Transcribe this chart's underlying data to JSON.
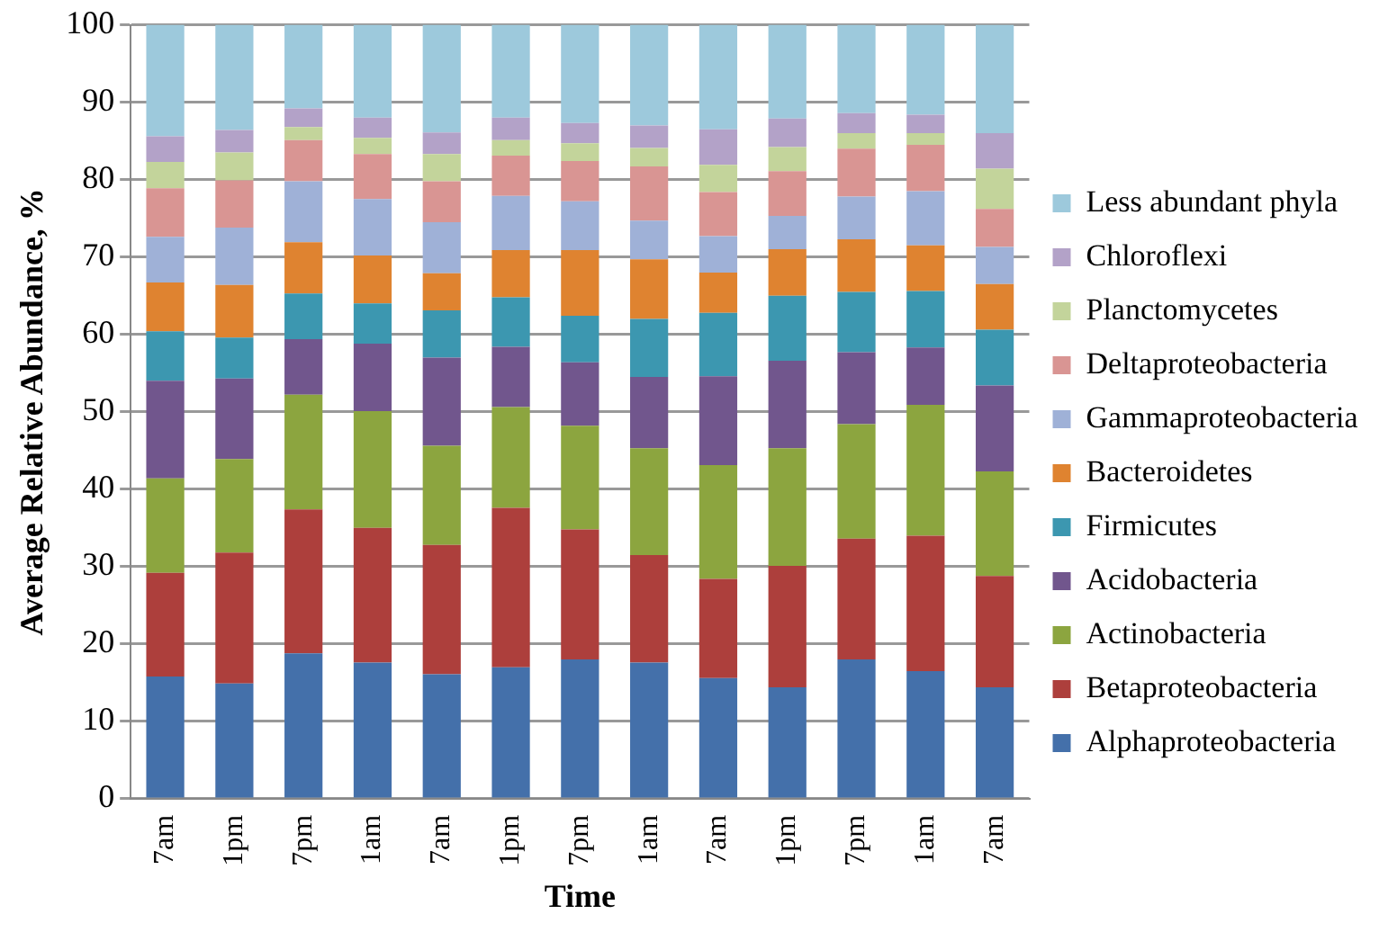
{
  "chart_data": {
    "type": "bar",
    "stacked": true,
    "xlabel": "Time",
    "ylabel": "Average Relative Abundance, %",
    "categories": [
      "7am",
      "1pm",
      "7pm",
      "1am",
      "7am",
      "1pm",
      "7pm",
      "1am",
      "7am",
      "1pm",
      "7pm",
      "1am",
      "7am"
    ],
    "ylim": [
      0,
      100
    ],
    "yticks": [
      0,
      10,
      20,
      30,
      40,
      50,
      60,
      70,
      80,
      90,
      100
    ],
    "grid": "y",
    "legend": "right",
    "series": [
      {
        "name": "Alphaproteobacteria",
        "color": "#4470aa",
        "values": [
          15.8,
          14.9,
          18.8,
          17.6,
          16.1,
          17,
          18,
          17.6,
          15.6,
          14.4,
          18,
          16.5,
          14.4
        ]
      },
      {
        "name": "Betaproteobacteria",
        "color": "#ad3f3c",
        "values": [
          13.4,
          16.9,
          18.6,
          17.4,
          16.7,
          20.6,
          16.8,
          13.9,
          12.8,
          15.7,
          15.6,
          17.5,
          14.4
        ]
      },
      {
        "name": "Actinobacteria",
        "color": "#8ca53f",
        "values": [
          12.2,
          12.1,
          14.8,
          15.1,
          12.8,
          13,
          13.4,
          13.8,
          14.7,
          15.2,
          14.8,
          16.9,
          13.5
        ]
      },
      {
        "name": "Acidobacteria",
        "color": "#71568d",
        "values": [
          12.6,
          10.4,
          7.2,
          8.7,
          11.4,
          7.8,
          8.2,
          9.2,
          11.5,
          11.3,
          9.3,
          7.4,
          11.1
        ]
      },
      {
        "name": "Firmicutes",
        "color": "#3c97b0",
        "values": [
          6.4,
          5.3,
          5.9,
          5.2,
          6.1,
          6.4,
          6,
          7.5,
          8.2,
          8.4,
          7.8,
          7.3,
          7.2
        ]
      },
      {
        "name": "Bacteroidetes",
        "color": "#df8330",
        "values": [
          6.3,
          6.8,
          6.6,
          6.2,
          4.8,
          6.1,
          8.5,
          7.7,
          5.2,
          6,
          6.8,
          5.9,
          5.9
        ]
      },
      {
        "name": "Gammaproteobacteria",
        "color": "#9fb1d7",
        "values": [
          5.9,
          7.4,
          7.9,
          7.3,
          6.6,
          7,
          6.3,
          5,
          4.7,
          4.3,
          5.5,
          7,
          4.8
        ]
      },
      {
        "name": "Deltaproteobacteria",
        "color": "#d99593",
        "values": [
          6.3,
          6.1,
          5.3,
          5.8,
          5.3,
          5.2,
          5.2,
          7,
          5.7,
          5.8,
          6.2,
          6,
          4.9
        ]
      },
      {
        "name": "Planctomycetes",
        "color": "#c3d49b",
        "values": [
          3.4,
          3.6,
          1.7,
          2.1,
          3.5,
          2,
          2.3,
          2.4,
          3.5,
          3.1,
          2,
          1.5,
          5.2
        ]
      },
      {
        "name": "Chloroflexi",
        "color": "#b3a2c8",
        "values": [
          3.3,
          2.9,
          2.4,
          2.6,
          2.8,
          2.9,
          2.6,
          2.9,
          4.6,
          3.7,
          2.6,
          2.4,
          4.6
        ]
      },
      {
        "name": "Less abundant phyla",
        "color": "#9dc9dc",
        "values": [
          14.4,
          13.6,
          10.8,
          12,
          13.9,
          12,
          12.7,
          13,
          13.5,
          12.1,
          11.4,
          11.6,
          14
        ]
      }
    ]
  }
}
